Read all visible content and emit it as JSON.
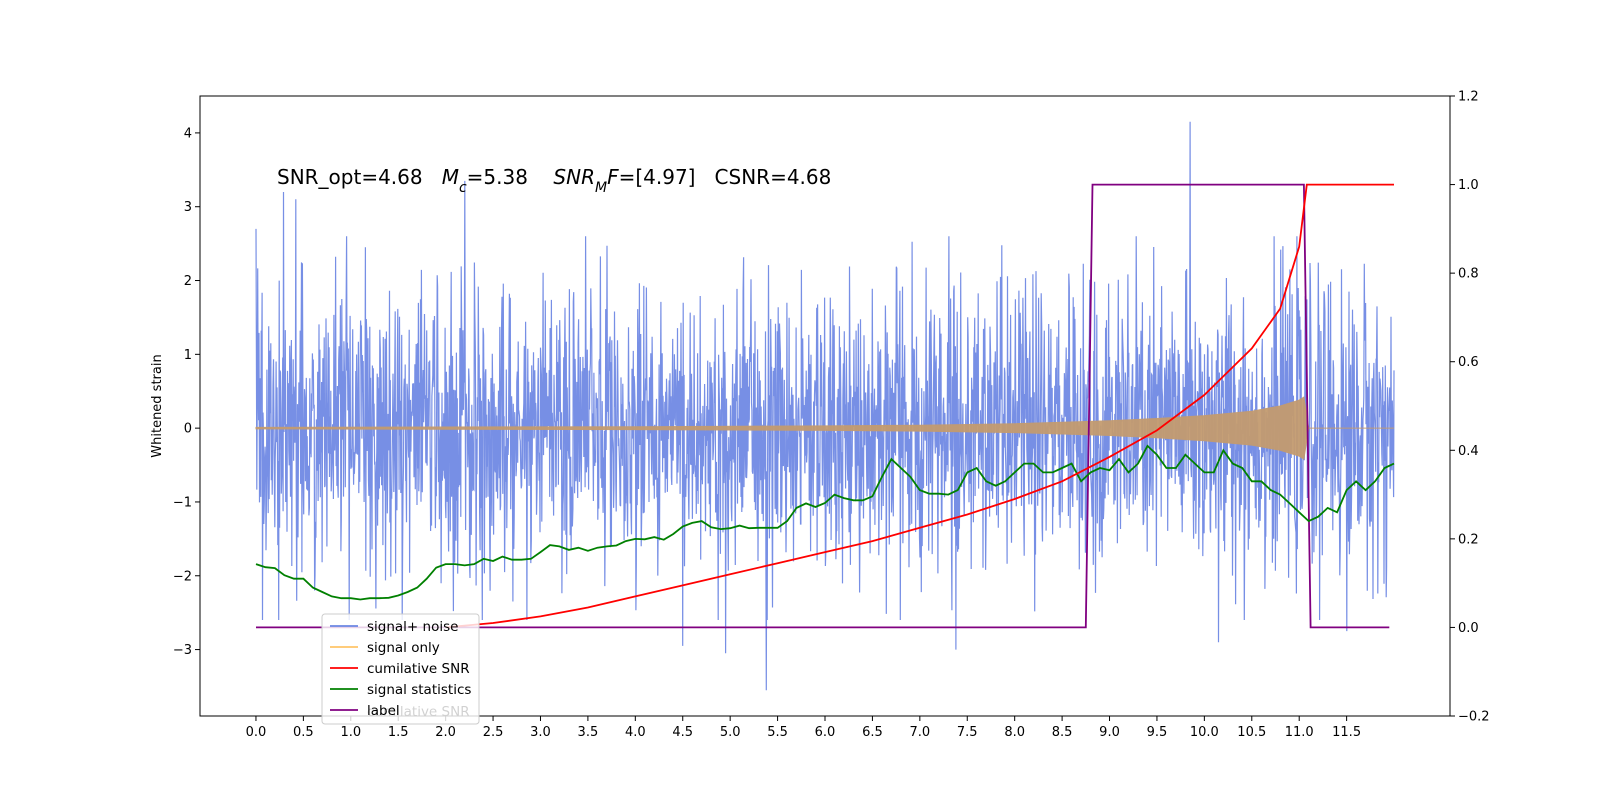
{
  "chart_data": {
    "type": "line",
    "ylabel": "Whitened strain",
    "annotation": {
      "parts": [
        {
          "text": "SNR_opt=4.68",
          "italic": false
        },
        {
          "text": "   ",
          "italic": false
        },
        {
          "text": "M",
          "italic": true
        },
        {
          "text": "c",
          "italic": true,
          "sub": true
        },
        {
          "text": "=5.38",
          "italic": false
        },
        {
          "text": "    ",
          "italic": false
        },
        {
          "text": "SNR",
          "italic": true
        },
        {
          "text": "M",
          "italic": true,
          "sub": true
        },
        {
          "text": "F",
          "italic": true
        },
        {
          "text": "=[4.97]",
          "italic": false
        },
        {
          "text": "   CSNR=4.68",
          "italic": false
        }
      ]
    },
    "x_axis": {
      "range": [
        -0.59,
        12.59
      ],
      "ticks": [
        0.0,
        0.5,
        1.0,
        1.5,
        2.0,
        2.5,
        3.0,
        3.5,
        4.0,
        4.5,
        5.0,
        5.5,
        6.0,
        6.5,
        7.0,
        7.5,
        8.0,
        8.5,
        9.0,
        9.5,
        10.0,
        10.5,
        11.0,
        11.5
      ],
      "tick_labels": [
        "0.0",
        "0.5",
        "1.0",
        "1.5",
        "2.0",
        "2.5",
        "3.0",
        "3.5",
        "4.0",
        "4.5",
        "5.0",
        "5.5",
        "6.0",
        "6.5",
        "7.0",
        "7.5",
        "8.0",
        "8.5",
        "9.0",
        "9.5",
        "10.0",
        "10.5",
        "11.0",
        "11.5"
      ]
    },
    "y_left": {
      "range": [
        -3.9,
        4.5
      ],
      "ticks": [
        -3,
        -2,
        -1,
        0,
        1,
        2,
        3,
        4
      ],
      "tick_labels": [
        "−3",
        "−2",
        "−1",
        "0",
        "1",
        "2",
        "3",
        "4"
      ]
    },
    "y_right": {
      "range": [
        -0.2,
        1.2
      ],
      "ticks": [
        -0.2,
        0.0,
        0.2,
        0.4,
        0.6,
        0.8,
        1.0,
        1.2
      ],
      "tick_labels": [
        "−0.2",
        "0.0",
        "0.2",
        "0.4",
        "0.6",
        "0.8",
        "1.0",
        "1.2"
      ]
    },
    "legend": {
      "placement": "lower-left",
      "entries": [
        {
          "label": "signal+ noise",
          "color": "#6b86e3"
        },
        {
          "label": "signal only",
          "color": "#ffc468"
        },
        {
          "label": "cumilative SNR",
          "color": "#ff0000"
        },
        {
          "label": "signal statistics",
          "color": "#008000"
        },
        {
          "label": "label",
          "color": "#800080"
        }
      ],
      "hidden_text": "cumilative SNR"
    },
    "series": [
      {
        "name": "signal+ noise",
        "axis": "left",
        "color": "#6b86e3",
        "x_range": [
          0.0,
          12.0
        ],
        "typical_amplitude": [
          -1.5,
          1.5
        ],
        "peaks": [
          {
            "x": 0.0,
            "y": 2.7
          },
          {
            "x": 0.29,
            "y": 3.2
          },
          {
            "x": 0.42,
            "y": 3.1
          },
          {
            "x": 0.07,
            "y": -2.6
          },
          {
            "x": 2.2,
            "y": 3.35
          },
          {
            "x": 4.5,
            "y": -2.95
          },
          {
            "x": 4.95,
            "y": -3.05
          },
          {
            "x": 5.38,
            "y": -3.55
          },
          {
            "x": 7.38,
            "y": -3.0
          },
          {
            "x": 9.85,
            "y": 4.15
          },
          {
            "x": 10.15,
            "y": -2.9
          },
          {
            "x": 11.5,
            "y": -2.75
          }
        ]
      },
      {
        "name": "signal only",
        "axis": "left",
        "color": "#ffc468",
        "points": [
          [
            0,
            0.01
          ],
          [
            2,
            0.015
          ],
          [
            4,
            0.02
          ],
          [
            6,
            0.03
          ],
          [
            7,
            0.04
          ],
          [
            8,
            0.06
          ],
          [
            8.5,
            0.08
          ],
          [
            9,
            0.1
          ],
          [
            9.5,
            0.13
          ],
          [
            10,
            0.17
          ],
          [
            10.5,
            0.23
          ],
          [
            10.8,
            0.3
          ],
          [
            11,
            0.38
          ],
          [
            11.05,
            0.42
          ],
          [
            11.1,
            0.0
          ],
          [
            12,
            0.0
          ]
        ]
      },
      {
        "name": "cumilative SNR",
        "axis": "right",
        "color": "#ff0000",
        "points": [
          [
            2.0,
            0.0
          ],
          [
            2.5,
            0.01
          ],
          [
            3.0,
            0.025
          ],
          [
            3.5,
            0.045
          ],
          [
            4.0,
            0.07
          ],
          [
            4.5,
            0.095
          ],
          [
            5.0,
            0.12
          ],
          [
            5.5,
            0.145
          ],
          [
            6.0,
            0.17
          ],
          [
            6.5,
            0.195
          ],
          [
            7.0,
            0.225
          ],
          [
            7.5,
            0.255
          ],
          [
            8.0,
            0.29
          ],
          [
            8.5,
            0.33
          ],
          [
            9.0,
            0.385
          ],
          [
            9.5,
            0.445
          ],
          [
            10.0,
            0.525
          ],
          [
            10.5,
            0.63
          ],
          [
            10.8,
            0.72
          ],
          [
            11.0,
            0.86
          ],
          [
            11.08,
            1.0
          ],
          [
            12.0,
            1.0
          ]
        ]
      },
      {
        "name": "signal statistics",
        "axis": "right",
        "color": "#008000",
        "points": [
          [
            0.0,
            0.143
          ],
          [
            0.1,
            0.136
          ],
          [
            0.2,
            0.134
          ],
          [
            0.3,
            0.118
          ],
          [
            0.4,
            0.11
          ],
          [
            0.5,
            0.11
          ],
          [
            0.6,
            0.09
          ],
          [
            0.7,
            0.08
          ],
          [
            0.8,
            0.07
          ],
          [
            0.9,
            0.066
          ],
          [
            1.0,
            0.066
          ],
          [
            1.1,
            0.063
          ],
          [
            1.2,
            0.066
          ],
          [
            1.3,
            0.066
          ],
          [
            1.4,
            0.067
          ],
          [
            1.5,
            0.072
          ],
          [
            1.6,
            0.08
          ],
          [
            1.7,
            0.09
          ],
          [
            1.8,
            0.11
          ],
          [
            1.9,
            0.135
          ],
          [
            2.0,
            0.143
          ],
          [
            2.1,
            0.143
          ],
          [
            2.2,
            0.14
          ],
          [
            2.3,
            0.143
          ],
          [
            2.4,
            0.155
          ],
          [
            2.5,
            0.15
          ],
          [
            2.6,
            0.16
          ],
          [
            2.7,
            0.153
          ],
          [
            2.8,
            0.153
          ],
          [
            2.9,
            0.155
          ],
          [
            3.0,
            0.17
          ],
          [
            3.1,
            0.186
          ],
          [
            3.2,
            0.183
          ],
          [
            3.3,
            0.175
          ],
          [
            3.4,
            0.18
          ],
          [
            3.5,
            0.173
          ],
          [
            3.6,
            0.18
          ],
          [
            3.7,
            0.183
          ],
          [
            3.8,
            0.185
          ],
          [
            3.9,
            0.195
          ],
          [
            4.0,
            0.2
          ],
          [
            4.1,
            0.199
          ],
          [
            4.2,
            0.204
          ],
          [
            4.3,
            0.198
          ],
          [
            4.4,
            0.211
          ],
          [
            4.5,
            0.228
          ],
          [
            4.6,
            0.236
          ],
          [
            4.7,
            0.24
          ],
          [
            4.8,
            0.226
          ],
          [
            4.9,
            0.222
          ],
          [
            5.0,
            0.224
          ],
          [
            5.1,
            0.23
          ],
          [
            5.2,
            0.224
          ],
          [
            5.3,
            0.225
          ],
          [
            5.4,
            0.225
          ],
          [
            5.5,
            0.225
          ],
          [
            5.6,
            0.24
          ],
          [
            5.7,
            0.27
          ],
          [
            5.8,
            0.28
          ],
          [
            5.9,
            0.272
          ],
          [
            6.0,
            0.281
          ],
          [
            6.1,
            0.3
          ],
          [
            6.2,
            0.292
          ],
          [
            6.3,
            0.287
          ],
          [
            6.4,
            0.287
          ],
          [
            6.5,
            0.296
          ],
          [
            6.6,
            0.34
          ],
          [
            6.7,
            0.38
          ],
          [
            6.8,
            0.36
          ],
          [
            6.9,
            0.34
          ],
          [
            7.0,
            0.31
          ],
          [
            7.1,
            0.302
          ],
          [
            7.2,
            0.302
          ],
          [
            7.3,
            0.3
          ],
          [
            7.4,
            0.31
          ],
          [
            7.5,
            0.35
          ],
          [
            7.6,
            0.36
          ],
          [
            7.7,
            0.33
          ],
          [
            7.8,
            0.32
          ],
          [
            7.9,
            0.33
          ],
          [
            8.0,
            0.35
          ],
          [
            8.1,
            0.37
          ],
          [
            8.2,
            0.37
          ],
          [
            8.3,
            0.35
          ],
          [
            8.4,
            0.35
          ],
          [
            8.5,
            0.36
          ],
          [
            8.6,
            0.37
          ],
          [
            8.7,
            0.33
          ],
          [
            8.8,
            0.35
          ],
          [
            8.9,
            0.36
          ],
          [
            9.0,
            0.355
          ],
          [
            9.1,
            0.38
          ],
          [
            9.2,
            0.35
          ],
          [
            9.3,
            0.37
          ],
          [
            9.4,
            0.41
          ],
          [
            9.5,
            0.39
          ],
          [
            9.6,
            0.36
          ],
          [
            9.7,
            0.36
          ],
          [
            9.8,
            0.39
          ],
          [
            9.9,
            0.37
          ],
          [
            10.0,
            0.35
          ],
          [
            10.1,
            0.35
          ],
          [
            10.2,
            0.4
          ],
          [
            10.3,
            0.37
          ],
          [
            10.4,
            0.36
          ],
          [
            10.5,
            0.33
          ],
          [
            10.6,
            0.33
          ],
          [
            10.7,
            0.31
          ],
          [
            10.8,
            0.3
          ],
          [
            10.9,
            0.28
          ],
          [
            11.0,
            0.26
          ],
          [
            11.1,
            0.24
          ],
          [
            11.2,
            0.25
          ],
          [
            11.3,
            0.27
          ],
          [
            11.4,
            0.26
          ],
          [
            11.5,
            0.31
          ],
          [
            11.6,
            0.33
          ],
          [
            11.7,
            0.31
          ],
          [
            11.8,
            0.33
          ],
          [
            11.9,
            0.36
          ],
          [
            12.0,
            0.37
          ]
        ]
      },
      {
        "name": "label",
        "axis": "right",
        "color": "#800080",
        "points": [
          [
            0.0,
            0.0
          ],
          [
            8.75,
            0.0
          ],
          [
            8.82,
            1.0
          ],
          [
            11.05,
            1.0
          ],
          [
            11.12,
            0.0
          ],
          [
            11.95,
            0.0
          ]
        ]
      }
    ]
  }
}
